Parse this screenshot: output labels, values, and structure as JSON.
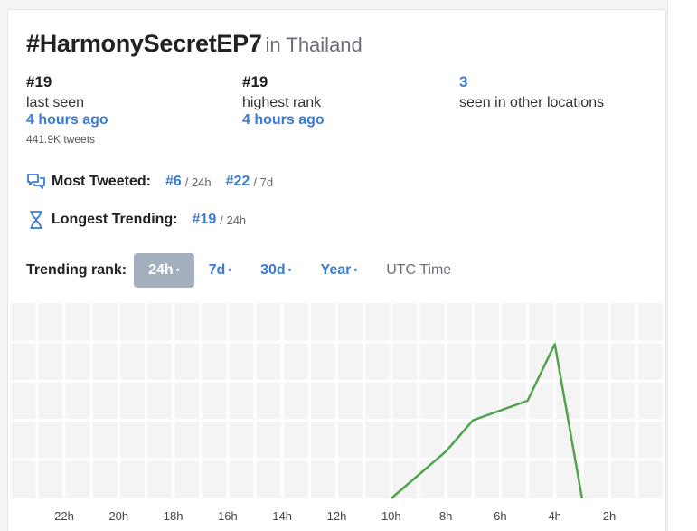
{
  "header": {
    "hashtag": "#HarmonySecretEP7",
    "location": "in Thailand"
  },
  "stats": {
    "last_seen": {
      "rank": "#19",
      "label": "last seen",
      "time": "4 hours ago",
      "tweets": "441.9K tweets"
    },
    "highest": {
      "rank": "#19",
      "label": "highest rank",
      "time": "4 hours ago"
    },
    "other_locations": {
      "count": "3",
      "label": "seen in other locations"
    }
  },
  "most_tweeted": {
    "label": "Most Tweeted:",
    "items": [
      {
        "rank": "#6",
        "period": "/ 24h"
      },
      {
        "rank": "#22",
        "period": "/ 7d"
      }
    ]
  },
  "longest_trending": {
    "label": "Longest Trending:",
    "items": [
      {
        "rank": "#19",
        "period": "/ 24h"
      }
    ]
  },
  "trending_tabs": {
    "label": "Trending rank:",
    "tabs": [
      "24h",
      "7d",
      "30d",
      "Year"
    ],
    "dot": "•",
    "active": "24h",
    "utc": "UTC Time"
  },
  "chart_data": {
    "type": "line",
    "x": [
      "10h",
      "8h",
      "7h",
      "5h",
      "4h",
      "3h"
    ],
    "tick_labels": [
      "22h",
      "20h",
      "18h",
      "16h",
      "14h",
      "12h",
      "10h",
      "8h",
      "6h",
      "4h",
      "2h"
    ],
    "series": [
      {
        "values": [
          0.0,
          0.24,
          0.4,
          0.5,
          0.79,
          0.0
        ]
      }
    ],
    "grid": true,
    "color": "#52a24e"
  }
}
